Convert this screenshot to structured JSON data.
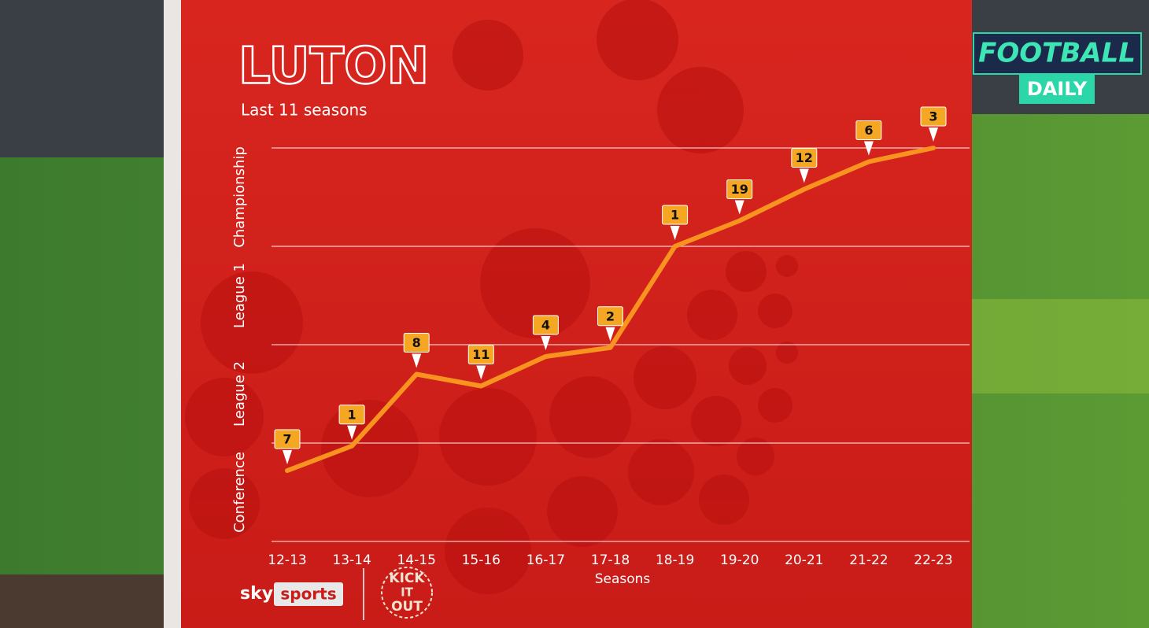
{
  "chart_data": {
    "type": "line",
    "title": "LUTON",
    "subtitle": "Last 11 seasons",
    "x_label": "Seasons",
    "categories": [
      "12-13",
      "13-14",
      "14-15",
      "15-16",
      "16-17",
      "17-18",
      "18-19",
      "19-20",
      "20-21",
      "21-22",
      "22-23"
    ],
    "series": [
      {
        "color": "#f7931e",
        "values": [
          0.72,
          0.97,
          1.7,
          1.58,
          1.88,
          1.97,
          3.0,
          3.26,
          3.58,
          3.86,
          4.0
        ]
      }
    ],
    "positions": [
      7,
      1,
      8,
      11,
      4,
      2,
      1,
      19,
      12,
      6,
      3
    ],
    "ylim": [
      0,
      4
    ],
    "ygrid": [
      0,
      1,
      2,
      3,
      4
    ],
    "yticks": [
      {
        "value": 0.5,
        "label": "Conference"
      },
      {
        "value": 1.5,
        "label": "League 2"
      },
      {
        "value": 2.5,
        "label": "League 1"
      },
      {
        "value": 3.5,
        "label": "Championship"
      }
    ],
    "grid": true
  },
  "overlay": {
    "show": "FOOTBALL",
    "show_sub": "DAILY",
    "broadcaster": [
      "sky",
      "sports"
    ],
    "campaign": [
      "KICK",
      "IT",
      "OUT"
    ]
  }
}
